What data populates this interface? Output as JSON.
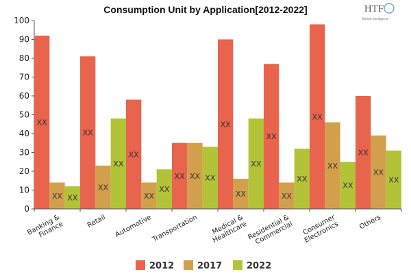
{
  "chart_data": {
    "type": "bar",
    "title": "Consumption Unit by  Application[2012-2022]",
    "categories": [
      [
        "Banking &",
        "Finance"
      ],
      [
        "Retail"
      ],
      [
        "Automotive"
      ],
      [
        "Transportation"
      ],
      [
        "Medical &",
        "Healthcare"
      ],
      [
        "Residential &",
        "Commercial"
      ],
      [
        "Consumer",
        "Electronics"
      ],
      [
        "Others"
      ]
    ],
    "series": [
      {
        "name": "2012",
        "color": "#e8644c",
        "values": [
          92,
          81,
          58,
          35,
          90,
          77,
          98,
          60
        ]
      },
      {
        "name": "2017",
        "color": "#d2a04d",
        "values": [
          14,
          23,
          14,
          35,
          16,
          14,
          46,
          39
        ]
      },
      {
        "name": "2022",
        "color": "#b3c338",
        "values": [
          12,
          48,
          21,
          33,
          48,
          32,
          25,
          31
        ]
      }
    ],
    "data_label": "XX",
    "ylim": [
      0,
      100
    ],
    "yticks": [
      0,
      10,
      20,
      30,
      40,
      50,
      60,
      70,
      80,
      90,
      100
    ],
    "grid": false,
    "legend": "bottom"
  },
  "logo": {
    "text": "HTF",
    "subtext": "Market Intelligence"
  }
}
